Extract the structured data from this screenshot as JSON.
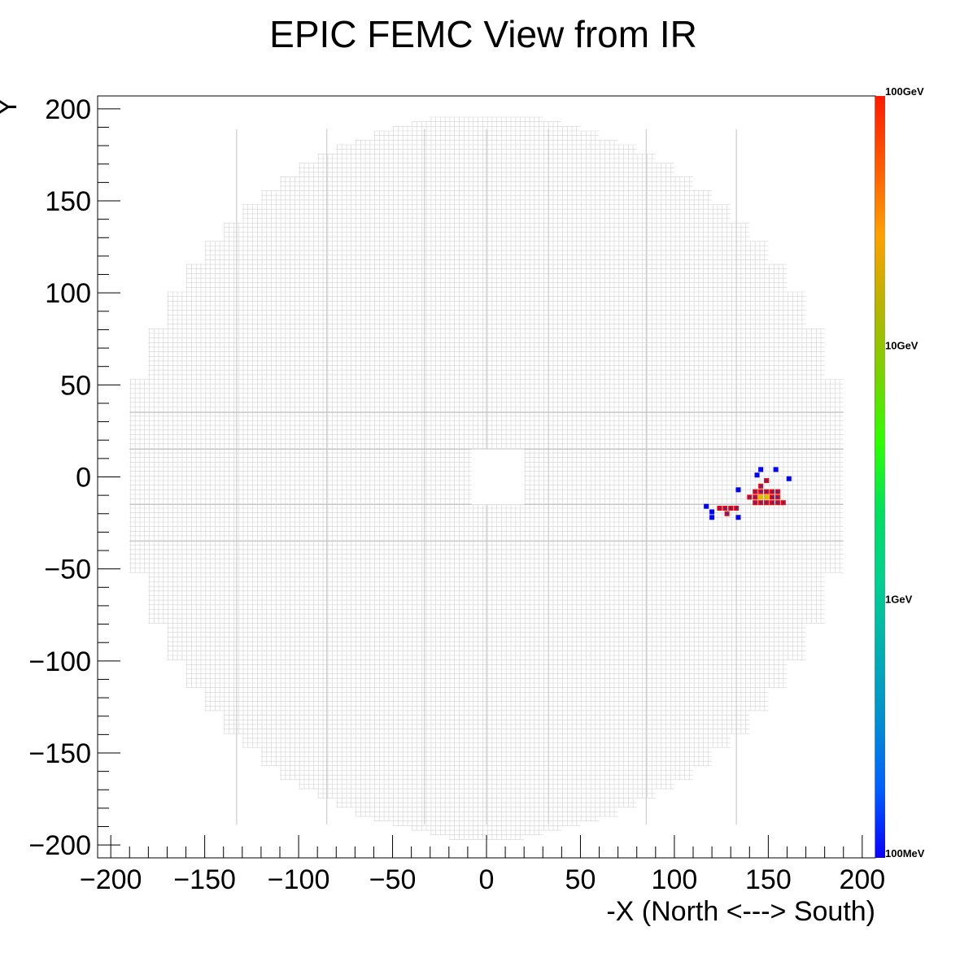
{
  "chart_data": {
    "type": "heatmap",
    "title": "EPIC FEMC View from IR",
    "xlabel": "-X (North <---> South)",
    "ylabel": "Y",
    "xlim": [
      -207,
      207
    ],
    "ylim": [
      -207,
      207
    ],
    "x_ticks": [
      -200,
      -150,
      -100,
      -50,
      0,
      50,
      100,
      150,
      200
    ],
    "y_ticks": [
      200,
      150,
      100,
      50,
      0,
      -50,
      -100,
      -150,
      -200
    ],
    "x_tick_labels": [
      "−200",
      "−150",
      "−100",
      "−50",
      "0",
      "50",
      "100",
      "150",
      "200"
    ],
    "y_tick_labels": [
      "200",
      "150",
      "100",
      "50",
      "0",
      "−50",
      "−100",
      "−150",
      "−200"
    ],
    "detector": {
      "outer_radius": 197,
      "beam_hole": {
        "x_min": -8,
        "x_max": 20,
        "y_min": -15,
        "y_max": 15
      }
    },
    "colorbar": {
      "scale": "log",
      "labels": [
        "100GeV",
        "10GeV",
        "1GeV",
        "100MeV"
      ],
      "colors": [
        "#ff1a00",
        "#ff5a00",
        "#ffa000",
        "#b9b400",
        "#7ad000",
        "#2eff00",
        "#00e060",
        "#00d090",
        "#00b0b0",
        "#0090d0",
        "#0060ff",
        "#0a00ff"
      ]
    },
    "hits": [
      {
        "x": 127,
        "y": -17,
        "e": "high"
      },
      {
        "x": 130,
        "y": -17,
        "e": "high"
      },
      {
        "x": 133,
        "y": -17,
        "e": "high"
      },
      {
        "x": 124,
        "y": -17,
        "e": "high"
      },
      {
        "x": 128,
        "y": -20,
        "e": "high"
      },
      {
        "x": 140,
        "y": -11,
        "e": "high"
      },
      {
        "x": 143,
        "y": -11,
        "e": "high"
      },
      {
        "x": 146,
        "y": -11,
        "e": "high"
      },
      {
        "x": 149,
        "y": -11,
        "e": "high"
      },
      {
        "x": 152,
        "y": -11,
        "e": "high"
      },
      {
        "x": 155,
        "y": -11,
        "e": "high"
      },
      {
        "x": 143,
        "y": -8,
        "e": "high"
      },
      {
        "x": 146,
        "y": -8,
        "e": "high"
      },
      {
        "x": 149,
        "y": -8,
        "e": "high"
      },
      {
        "x": 152,
        "y": -8,
        "e": "high"
      },
      {
        "x": 155,
        "y": -8,
        "e": "high"
      },
      {
        "x": 143,
        "y": -14,
        "e": "high"
      },
      {
        "x": 146,
        "y": -14,
        "e": "high"
      },
      {
        "x": 149,
        "y": -14,
        "e": "high"
      },
      {
        "x": 152,
        "y": -14,
        "e": "high"
      },
      {
        "x": 155,
        "y": -14,
        "e": "high"
      },
      {
        "x": 158,
        "y": -14,
        "e": "high"
      },
      {
        "x": 146,
        "y": -5,
        "e": "high"
      },
      {
        "x": 149,
        "y": -2,
        "e": "high"
      },
      {
        "x": 146,
        "y": -11,
        "e": "mid"
      },
      {
        "x": 149,
        "y": -11,
        "e": "mid"
      },
      {
        "x": 117,
        "y": -16,
        "e": "low"
      },
      {
        "x": 120,
        "y": -19,
        "e": "low"
      },
      {
        "x": 120,
        "y": -22,
        "e": "low"
      },
      {
        "x": 134,
        "y": -22,
        "e": "low"
      },
      {
        "x": 134,
        "y": -7,
        "e": "low"
      },
      {
        "x": 146,
        "y": 4,
        "e": "low"
      },
      {
        "x": 144,
        "y": 1,
        "e": "low"
      },
      {
        "x": 154,
        "y": 4,
        "e": "low"
      },
      {
        "x": 161,
        "y": -1,
        "e": "low"
      }
    ]
  }
}
